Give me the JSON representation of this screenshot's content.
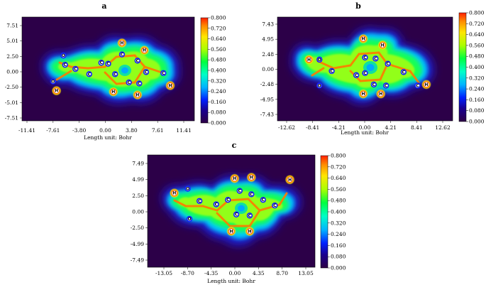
{
  "colormap": {
    "stops": [
      "#30004a",
      "#0000ff",
      "#00d2ff",
      "#00ff8c",
      "#a0ff00",
      "#ffd700",
      "#ff2a00"
    ]
  },
  "panels": [
    {
      "id": "a",
      "letter": "a",
      "x_label": "Length unit: Bohr",
      "x_ticks": [
        "-11.41",
        "-7.61",
        "-3.80",
        "0.00",
        "3.80",
        "7.61",
        "11.41"
      ],
      "y_ticks": [
        "7.51",
        "5.01",
        "2.50",
        "0.00",
        "-2.50",
        "-5.01",
        "-7.51"
      ],
      "colorbar_ticks": [
        "0.800",
        "0.720",
        "0.640",
        "0.560",
        "0.480",
        "0.400",
        "0.320",
        "0.240",
        "0.160",
        "0.080",
        "0.000"
      ],
      "atoms": [
        {
          "label": "H",
          "x": 0.58,
          "y": 0.75
        },
        {
          "label": "H",
          "x": 0.71,
          "y": 0.68
        },
        {
          "label": "C",
          "x": 0.58,
          "y": 0.64
        },
        {
          "label": "C",
          "x": 0.67,
          "y": 0.58
        },
        {
          "label": "C",
          "x": 0.5,
          "y": 0.55
        },
        {
          "label": "C",
          "x": 0.54,
          "y": 0.45
        },
        {
          "label": "C",
          "x": 0.72,
          "y": 0.47
        },
        {
          "label": "C",
          "x": 0.82,
          "y": 0.46
        },
        {
          "label": "C",
          "x": 0.62,
          "y": 0.37
        },
        {
          "label": "C",
          "x": 0.68,
          "y": 0.36
        },
        {
          "label": "O",
          "x": 0.24,
          "y": 0.63
        },
        {
          "label": "C",
          "x": 0.31,
          "y": 0.5
        },
        {
          "label": "C",
          "x": 0.39,
          "y": 0.45
        },
        {
          "label": "C",
          "x": 0.46,
          "y": 0.56
        },
        {
          "label": "C",
          "x": 0.25,
          "y": 0.54
        },
        {
          "label": "O",
          "x": 0.18,
          "y": 0.38
        },
        {
          "label": "H",
          "x": 0.2,
          "y": 0.29
        },
        {
          "label": "H",
          "x": 0.53,
          "y": 0.28
        },
        {
          "label": "H",
          "x": 0.67,
          "y": 0.25
        },
        {
          "label": "H",
          "x": 0.86,
          "y": 0.34
        }
      ]
    },
    {
      "id": "b",
      "letter": "b",
      "x_label": "Length unit: Bohr",
      "x_ticks": [
        "-12.62",
        "-8.41",
        "-4.21",
        "0.00",
        "4.21",
        "8.41",
        "12.62"
      ],
      "y_ticks": [
        "7.43",
        "4.95",
        "2.48",
        "0.00",
        "-2.48",
        "-4.95",
        "-7.43"
      ],
      "colorbar_ticks": [
        "0.800",
        "0.720",
        "0.640",
        "0.560",
        "0.480",
        "0.400",
        "0.320",
        "0.240",
        "0.160",
        "0.080",
        "0.000"
      ],
      "atoms": [
        {
          "label": "H",
          "x": 0.49,
          "y": 0.79
        },
        {
          "label": "H",
          "x": 0.6,
          "y": 0.73
        },
        {
          "label": "H",
          "x": 0.18,
          "y": 0.59
        },
        {
          "label": "O",
          "x": 0.24,
          "y": 0.59
        },
        {
          "label": "C",
          "x": 0.31,
          "y": 0.48
        },
        {
          "label": "C",
          "x": 0.5,
          "y": 0.61
        },
        {
          "label": "C",
          "x": 0.56,
          "y": 0.6
        },
        {
          "label": "C",
          "x": 0.63,
          "y": 0.55
        },
        {
          "label": "C",
          "x": 0.5,
          "y": 0.46
        },
        {
          "label": "C",
          "x": 0.45,
          "y": 0.44
        },
        {
          "label": "C",
          "x": 0.72,
          "y": 0.47
        },
        {
          "label": "O",
          "x": 0.24,
          "y": 0.34
        },
        {
          "label": "C",
          "x": 0.55,
          "y": 0.35
        },
        {
          "label": "C",
          "x": 0.62,
          "y": 0.34
        },
        {
          "label": "C",
          "x": 0.8,
          "y": 0.34
        },
        {
          "label": "H",
          "x": 0.85,
          "y": 0.35
        },
        {
          "label": "H",
          "x": 0.49,
          "y": 0.26
        },
        {
          "label": "H",
          "x": 0.59,
          "y": 0.26
        }
      ]
    },
    {
      "id": "c",
      "letter": "c",
      "x_label": "Length unit: Bohr",
      "x_ticks": [
        "-13.05",
        "-8.70",
        "-4.35",
        "0.00",
        "4.35",
        "8.70",
        "13.05"
      ],
      "y_ticks": [
        "7.49",
        "4.99",
        "2.50",
        "0.00",
        "-2.50",
        "-4.99",
        "-7.49"
      ],
      "colorbar_ticks": [
        "0.800",
        "0.720",
        "0.640",
        "0.560",
        "0.480",
        "0.400",
        "0.320",
        "0.240",
        "0.160",
        "0.080",
        "0.000"
      ],
      "atoms": [
        {
          "label": "H",
          "x": 0.52,
          "y": 0.79
        },
        {
          "label": "H",
          "x": 0.62,
          "y": 0.8
        },
        {
          "label": "H",
          "x": 0.85,
          "y": 0.78
        },
        {
          "label": "O",
          "x": 0.24,
          "y": 0.7
        },
        {
          "label": "H",
          "x": 0.16,
          "y": 0.66
        },
        {
          "label": "C",
          "x": 0.31,
          "y": 0.59
        },
        {
          "label": "C",
          "x": 0.55,
          "y": 0.68
        },
        {
          "label": "C",
          "x": 0.62,
          "y": 0.65
        },
        {
          "label": "C",
          "x": 0.48,
          "y": 0.6
        },
        {
          "label": "C",
          "x": 0.41,
          "y": 0.56
        },
        {
          "label": "C",
          "x": 0.69,
          "y": 0.6
        },
        {
          "label": "C",
          "x": 0.76,
          "y": 0.55
        },
        {
          "label": "O",
          "x": 0.25,
          "y": 0.43
        },
        {
          "label": "C",
          "x": 0.53,
          "y": 0.47
        },
        {
          "label": "C",
          "x": 0.61,
          "y": 0.46
        },
        {
          "label": "H",
          "x": 0.5,
          "y": 0.32
        },
        {
          "label": "H",
          "x": 0.61,
          "y": 0.32
        }
      ]
    }
  ]
}
